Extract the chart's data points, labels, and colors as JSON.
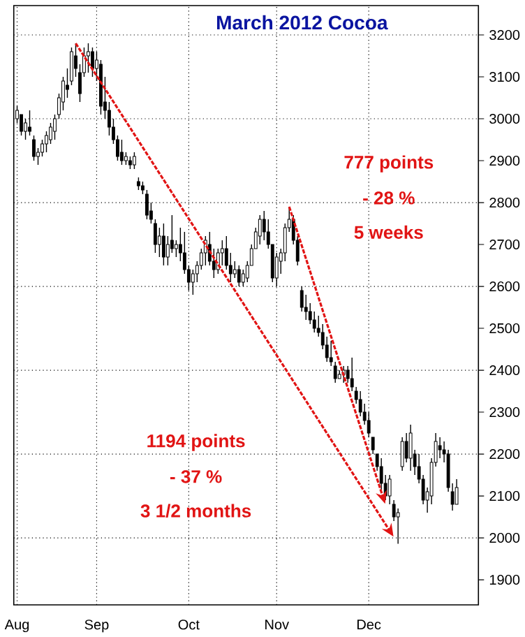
{
  "chart_data": {
    "type": "candlestick",
    "title": "March 2012 Cocoa",
    "color": "#000000",
    "categories": [
      "Aug",
      null,
      null,
      null,
      null,
      null,
      null,
      null,
      null,
      null,
      null,
      null,
      null,
      null,
      null,
      null,
      null,
      null,
      null,
      "Sep",
      null,
      null,
      null,
      null,
      null,
      null,
      null,
      null,
      null,
      null,
      null,
      null,
      null,
      null,
      null,
      null,
      null,
      null,
      null,
      null,
      null,
      "Oct",
      null,
      null,
      null,
      null,
      null,
      null,
      null,
      null,
      null,
      null,
      null,
      null,
      null,
      null,
      null,
      null,
      null,
      null,
      null,
      null,
      "Nov",
      null,
      null,
      null,
      null,
      null,
      null,
      null,
      null,
      null,
      null,
      null,
      null,
      null,
      null,
      null,
      null,
      null,
      null,
      null,
      null,
      null,
      "Dec",
      null,
      null,
      null,
      null,
      null,
      null,
      null,
      null,
      null,
      null,
      null,
      null,
      null,
      null,
      null,
      null,
      null,
      null,
      null,
      null,
      null
    ],
    "ohlc": [
      [
        3000,
        3030,
        2990,
        3020
      ],
      [
        3010,
        3010,
        2960,
        2970
      ],
      [
        2970,
        3000,
        2950,
        2990
      ],
      [
        2980,
        3020,
        2960,
        2970
      ],
      [
        2950,
        2960,
        2900,
        2910
      ],
      [
        2910,
        2930,
        2890,
        2920
      ],
      [
        2920,
        2950,
        2910,
        2940
      ],
      [
        2940,
        2970,
        2920,
        2960
      ],
      [
        2950,
        2990,
        2940,
        2980
      ],
      [
        2970,
        3010,
        2950,
        3000
      ],
      [
        3010,
        3060,
        3000,
        3050
      ],
      [
        3040,
        3100,
        3020,
        3090
      ],
      [
        3080,
        3120,
        3050,
        3070
      ],
      [
        3090,
        3170,
        3080,
        3160
      ],
      [
        3150,
        3180,
        3100,
        3120
      ],
      [
        3110,
        3130,
        3040,
        3060
      ],
      [
        3110,
        3170,
        3100,
        3150
      ],
      [
        3150,
        3180,
        3110,
        3160
      ],
      [
        3160,
        3170,
        3100,
        3120
      ],
      [
        3120,
        3160,
        3090,
        3140
      ],
      [
        3130,
        3140,
        3010,
        3030
      ],
      [
        3040,
        3100,
        3000,
        3020
      ],
      [
        3020,
        3040,
        2960,
        2980
      ],
      [
        2980,
        3000,
        2940,
        2950
      ],
      [
        2950,
        2960,
        2900,
        2910
      ],
      [
        2920,
        2950,
        2890,
        2900
      ],
      [
        2900,
        2920,
        2890,
        2910
      ],
      [
        2900,
        2910,
        2880,
        2890
      ],
      [
        2890,
        2920,
        2880,
        2910
      ],
      [
        2850,
        2860,
        2830,
        2840
      ],
      [
        2840,
        2850,
        2820,
        2830
      ],
      [
        2820,
        2830,
        2760,
        2770
      ],
      [
        2780,
        2800,
        2750,
        2760
      ],
      [
        2750,
        2760,
        2680,
        2700
      ],
      [
        2700,
        2740,
        2670,
        2720
      ],
      [
        2720,
        2750,
        2650,
        2670
      ],
      [
        2670,
        2720,
        2650,
        2700
      ],
      [
        2710,
        2770,
        2680,
        2690
      ],
      [
        2690,
        2710,
        2670,
        2700
      ],
      [
        2700,
        2740,
        2660,
        2680
      ],
      [
        2680,
        2730,
        2630,
        2640
      ],
      [
        2640,
        2650,
        2590,
        2610
      ],
      [
        2610,
        2640,
        2580,
        2630
      ],
      [
        2630,
        2660,
        2610,
        2650
      ],
      [
        2650,
        2690,
        2640,
        2680
      ],
      [
        2680,
        2720,
        2650,
        2710
      ],
      [
        2700,
        2730,
        2650,
        2660
      ],
      [
        2660,
        2690,
        2620,
        2640
      ],
      [
        2640,
        2690,
        2630,
        2680
      ],
      [
        2680,
        2710,
        2650,
        2690
      ],
      [
        2690,
        2720,
        2640,
        2650
      ],
      [
        2650,
        2680,
        2610,
        2630
      ],
      [
        2630,
        2660,
        2620,
        2640
      ],
      [
        2640,
        2650,
        2600,
        2610
      ],
      [
        2610,
        2640,
        2600,
        2630
      ],
      [
        2620,
        2660,
        2610,
        2650
      ],
      [
        2650,
        2700,
        2650,
        2690
      ],
      [
        2690,
        2740,
        2690,
        2730
      ],
      [
        2720,
        2770,
        2700,
        2760
      ],
      [
        2760,
        2780,
        2710,
        2730
      ],
      [
        2730,
        2760,
        2690,
        2700
      ],
      [
        2700,
        2700,
        2610,
        2620
      ],
      [
        2620,
        2680,
        2600,
        2670
      ],
      [
        2660,
        2690,
        2630,
        2680
      ],
      [
        2680,
        2750,
        2660,
        2740
      ],
      [
        2740,
        2790,
        2730,
        2760
      ],
      [
        2760,
        2770,
        2700,
        2710
      ],
      [
        2710,
        2720,
        2650,
        2660
      ],
      [
        2590,
        2600,
        2540,
        2550
      ],
      [
        2550,
        2580,
        2520,
        2540
      ],
      [
        2540,
        2560,
        2510,
        2520
      ],
      [
        2520,
        2540,
        2490,
        2500
      ],
      [
        2500,
        2530,
        2480,
        2490
      ],
      [
        2490,
        2510,
        2450,
        2460
      ],
      [
        2460,
        2480,
        2420,
        2430
      ],
      [
        2430,
        2470,
        2410,
        2420
      ],
      [
        2410,
        2420,
        2370,
        2380
      ],
      [
        2380,
        2400,
        2380,
        2390
      ],
      [
        2390,
        2410,
        2370,
        2400
      ],
      [
        2400,
        2410,
        2370,
        2380
      ],
      [
        2380,
        2430,
        2350,
        2360
      ],
      [
        2350,
        2360,
        2320,
        2330
      ],
      [
        2330,
        2350,
        2290,
        2300
      ],
      [
        2300,
        2320,
        2270,
        2280
      ],
      [
        2280,
        2300,
        2240,
        2250
      ],
      [
        2240,
        2240,
        2200,
        2210
      ],
      [
        2200,
        2200,
        2160,
        2170
      ],
      [
        2170,
        2190,
        2110,
        2130
      ],
      [
        2130,
        2150,
        2090,
        2100
      ],
      [
        2100,
        2150,
        2080,
        2140
      ],
      [
        2080,
        2090,
        2040,
        2050
      ],
      [
        2050,
        2070,
        1986,
        2060
      ],
      [
        2170,
        2240,
        2160,
        2230
      ],
      [
        2230,
        2250,
        2180,
        2190
      ],
      [
        2190,
        2270,
        2160,
        2250
      ],
      [
        2200,
        2210,
        2150,
        2170
      ],
      [
        2170,
        2200,
        2130,
        2140
      ],
      [
        2140,
        2150,
        2080,
        2090
      ],
      [
        2090,
        2120,
        2060,
        2110
      ],
      [
        2100,
        2190,
        2080,
        2180
      ],
      [
        2180,
        2250,
        2170,
        2230
      ],
      [
        2220,
        2240,
        2190,
        2210
      ],
      [
        2210,
        2230,
        2180,
        2200
      ],
      [
        2200,
        2210,
        2110,
        2120
      ],
      [
        2110,
        2130,
        2065,
        2080
      ],
      [
        2080,
        2140,
        2080,
        2120
      ]
    ],
    "ylim": [
      1840,
      3270
    ],
    "yticks": [
      1900,
      2000,
      2100,
      2200,
      2300,
      2400,
      2500,
      2600,
      2700,
      2800,
      2900,
      3000,
      3100,
      3200
    ],
    "grid": true,
    "annotations": [
      "777 points",
      "-  28 %",
      "5 weeks",
      "1194 points",
      "- 37 %",
      "3 1/2 months"
    ]
  }
}
